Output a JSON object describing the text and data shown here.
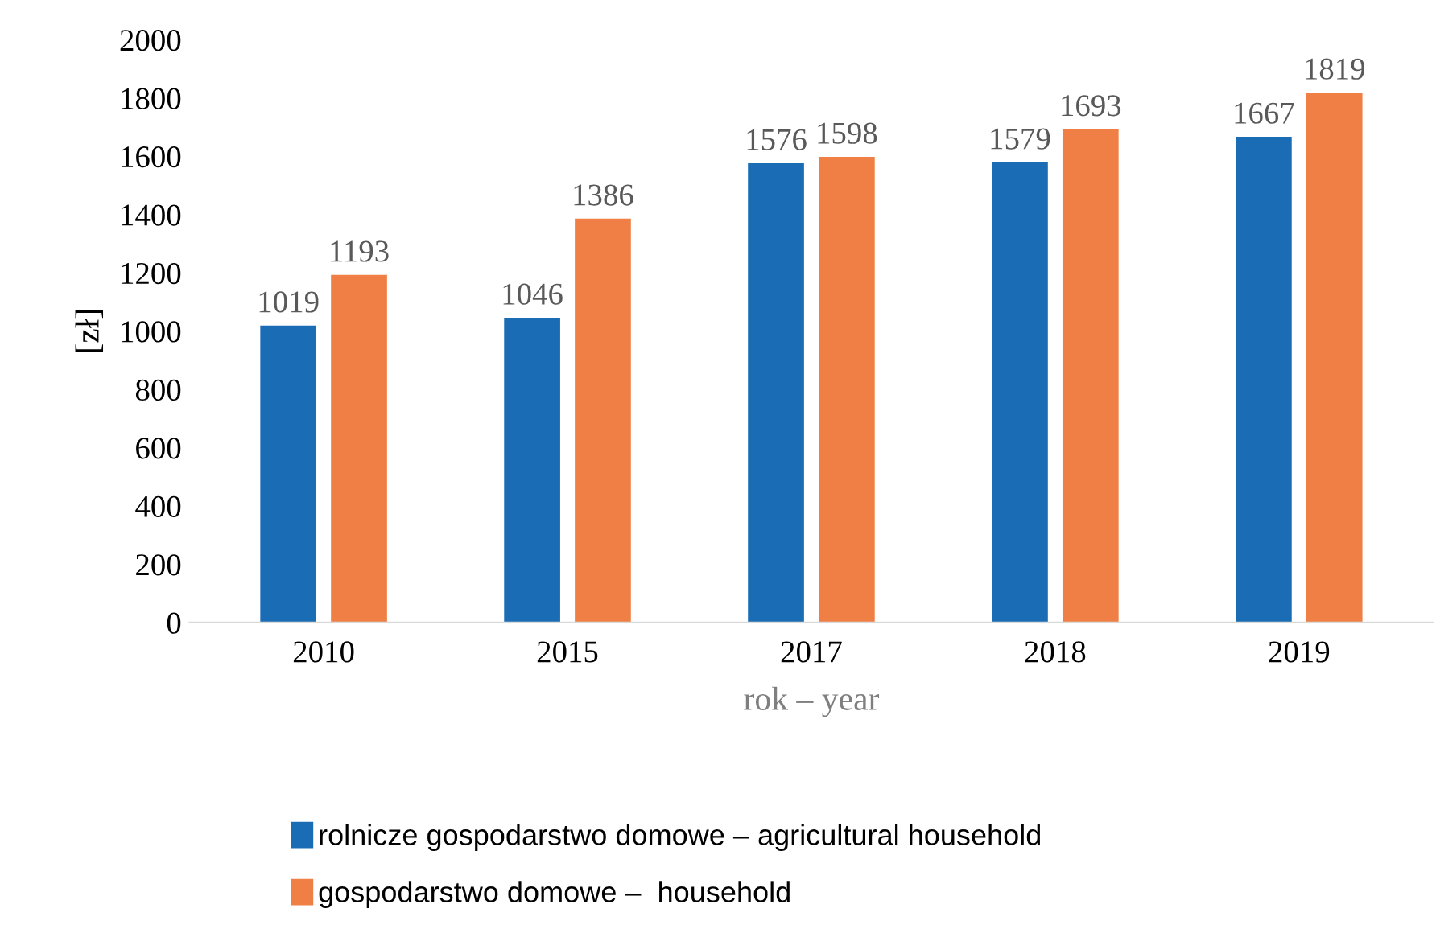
{
  "chart_data": {
    "type": "bar",
    "xlabel": "rok – year",
    "ylabel": "[zł]",
    "categories": [
      "2010",
      "2015",
      "2017",
      "2018",
      "2019"
    ],
    "series": [
      {
        "name": "rolnicze gospodarstwo domowe – agricultural household",
        "color": "#1a6db5",
        "values": [
          1019,
          1046,
          1576,
          1579,
          1667
        ]
      },
      {
        "name": "gospodarstwo domowe –  household",
        "color": "#f07f45",
        "values": [
          1193,
          1386,
          1598,
          1693,
          1819
        ]
      }
    ],
    "ylim": [
      0,
      2000
    ],
    "yticks": [
      0,
      200,
      400,
      600,
      800,
      1000,
      1200,
      1400,
      1600,
      1800,
      2000
    ],
    "grid": false,
    "legend": "bottom",
    "data_labels": true
  }
}
